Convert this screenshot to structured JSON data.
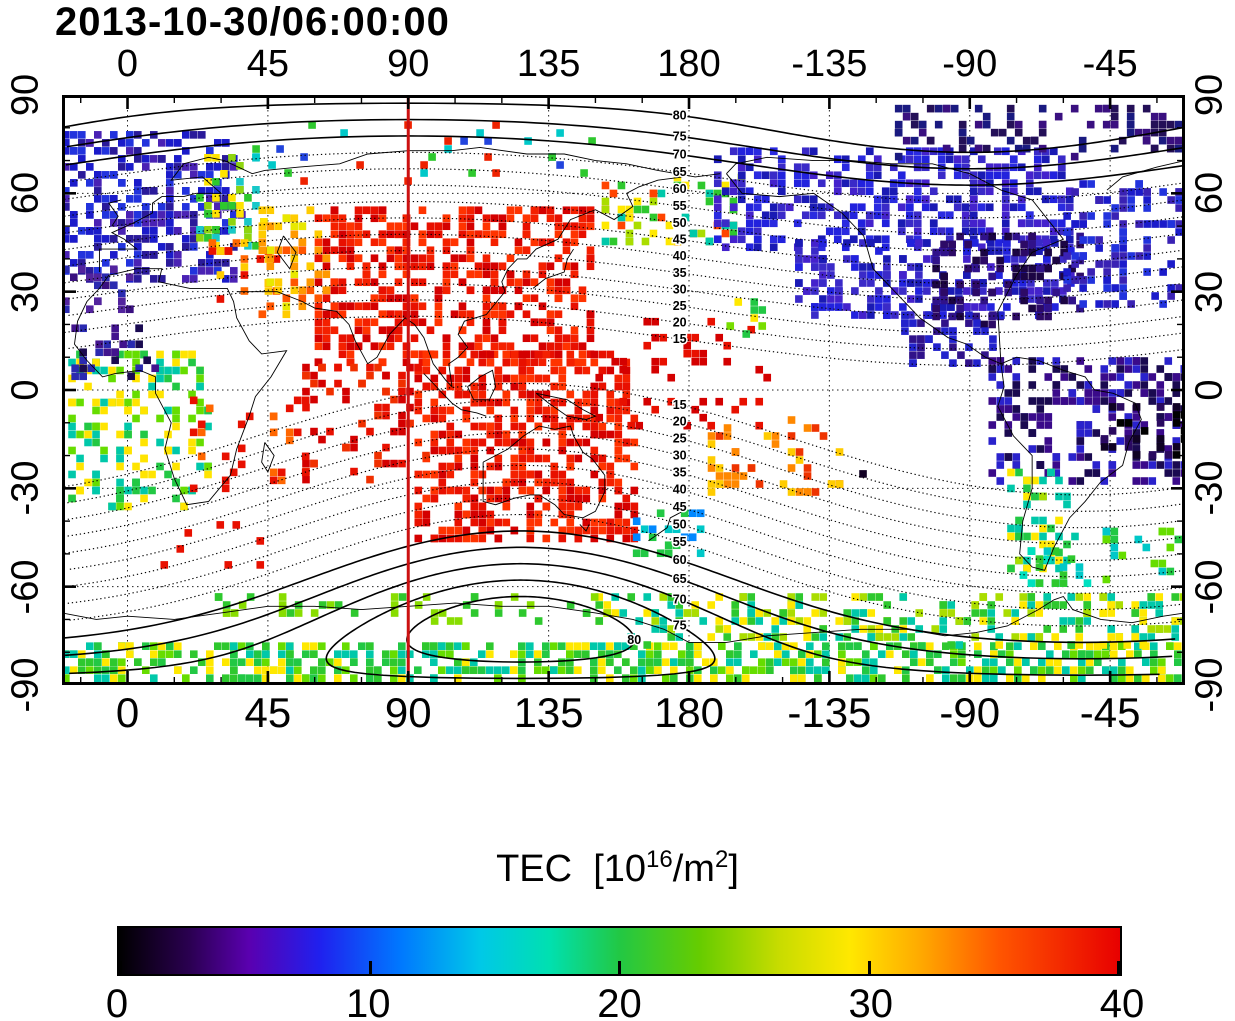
{
  "colorbar_title": {
    "prefix": "TEC  [10",
    "exp1": "16",
    "mid": "/m",
    "exp2": "2",
    "suffix": "]"
  },
  "chart_data": {
    "type": "heatmap",
    "title": "2013-10-30/06:00:00",
    "xlabel": "",
    "ylabel": "",
    "x_ticks": [
      "0",
      "45",
      "90",
      "135",
      "180",
      "-135",
      "-90",
      "-45"
    ],
    "x_tick_lons": [
      0,
      45,
      90,
      135,
      180,
      225,
      270,
      315
    ],
    "y_ticks": [
      "90",
      "60",
      "30",
      "0",
      "-30",
      "-60",
      "-90"
    ],
    "y_tick_lats": [
      90,
      60,
      30,
      0,
      -30,
      -60,
      -90
    ],
    "lon_min": -21,
    "lat_range": [
      -90,
      90
    ],
    "grid": {
      "lon_step": 45,
      "lat_step": 30,
      "style": "dotted"
    },
    "marker_line": {
      "lon": 90,
      "color": "#cc1111"
    },
    "contours": {
      "levels": [
        15,
        20,
        25,
        30,
        35,
        40,
        45,
        50,
        55,
        60,
        65,
        70,
        75,
        80
      ],
      "label_lon": 177,
      "solid_from": {
        "north": 70,
        "south": 60
      },
      "north_center": {
        "lat": 82.5,
        "lon": 270
      },
      "south_center": {
        "lat": -73,
        "lon": 126
      }
    },
    "colorbar": {
      "label": "TEC [10^16/m^2]",
      "range": [
        0,
        40
      ],
      "ticks": [
        "0",
        "10",
        "20",
        "30",
        "40"
      ],
      "tick_values": [
        0,
        10,
        20,
        30,
        40
      ],
      "gradient": [
        {
          "p": 0,
          "c": "#000000"
        },
        {
          "p": 7,
          "c": "#2a0050"
        },
        {
          "p": 13,
          "c": "#5a00b0"
        },
        {
          "p": 20,
          "c": "#2020ee"
        },
        {
          "p": 28,
          "c": "#0077ff"
        },
        {
          "p": 36,
          "c": "#00c8e8"
        },
        {
          "p": 43,
          "c": "#00e0b0"
        },
        {
          "p": 50,
          "c": "#22c844"
        },
        {
          "p": 58,
          "c": "#66cc00"
        },
        {
          "p": 66,
          "c": "#c8dc00"
        },
        {
          "p": 73,
          "c": "#ffe800"
        },
        {
          "p": 80,
          "c": "#ffaa00"
        },
        {
          "p": 88,
          "c": "#ff5500"
        },
        {
          "p": 100,
          "c": "#e80000"
        }
      ]
    },
    "regions": [
      {
        "name": "europe-blue",
        "lon": [
          -21,
          36
        ],
        "lat": [
          34,
          79
        ],
        "density": 0.7,
        "tec": 6,
        "colors": [
          "#2a1a9a",
          "#2233dd",
          "#1b1bca",
          "#4a22b4"
        ]
      },
      {
        "name": "iberia-maghreb-purple",
        "lon": [
          -21,
          2
        ],
        "lat": [
          24,
          38
        ],
        "density": 0.55,
        "tec": 5,
        "colors": [
          "#3a1080",
          "#52239e",
          "#2a2ab0"
        ]
      },
      {
        "name": "europe-green-fringe",
        "lon": [
          22,
          44
        ],
        "lat": [
          44,
          72
        ],
        "density": 0.5,
        "tec": 18,
        "colors": [
          "#2ec82e",
          "#8fd50f",
          "#ffe400",
          "#19c8c8"
        ]
      },
      {
        "name": "anatolia-red",
        "lon": [
          26,
          48
        ],
        "lat": [
          28,
          46
        ],
        "density": 0.4,
        "tec": 34,
        "colors": [
          "#e81000",
          "#ff6600",
          "#ffcc00"
        ]
      },
      {
        "name": "mideast-orange",
        "lon": [
          42,
          64
        ],
        "lat": [
          22,
          56
        ],
        "density": 0.55,
        "tec": 28,
        "colors": [
          "#ffcc00",
          "#ff9900",
          "#ff5500",
          "#e8e800"
        ]
      },
      {
        "name": "asia-red",
        "lon": [
          60,
          150
        ],
        "lat": [
          8,
          56
        ],
        "density": 0.75,
        "tec": 38,
        "colors": [
          "#e81000",
          "#f42000",
          "#d40000",
          "#ff3300"
        ]
      },
      {
        "name": "seasia-australia-red",
        "lon": [
          92,
          163
        ],
        "lat": [
          -46,
          12
        ],
        "density": 0.78,
        "tec": 38,
        "colors": [
          "#e81000",
          "#f42000",
          "#d40000",
          "#ff3300"
        ]
      },
      {
        "name": "indian-ocean-red",
        "lon": [
          56,
          96
        ],
        "lat": [
          -28,
          8
        ],
        "density": 0.3,
        "tec": 36,
        "colors": [
          "#e81000",
          "#f03000",
          "#d40000"
        ]
      },
      {
        "name": "west-pacific-red-scatter",
        "lon": [
          150,
          206
        ],
        "lat": [
          -12,
          22
        ],
        "density": 0.16,
        "tec": 36,
        "colors": [
          "#e81000",
          "#d40000"
        ]
      },
      {
        "name": "south-pacific-orange",
        "lon": [
          186,
          228
        ],
        "lat": [
          -32,
          -8
        ],
        "density": 0.3,
        "tec": 30,
        "colors": [
          "#ff8800",
          "#ee3300",
          "#ffcc00"
        ]
      },
      {
        "name": "hawaii-green",
        "lon": [
          192,
          206
        ],
        "lat": [
          16,
          28
        ],
        "density": 0.3,
        "tec": 24,
        "colors": [
          "#77dd00",
          "#ffe800",
          "#22c844"
        ]
      },
      {
        "name": "bering-green",
        "lon": [
          152,
          198
        ],
        "lat": [
          44,
          66
        ],
        "density": 0.38,
        "tec": 20,
        "colors": [
          "#2ec82e",
          "#aadd00",
          "#ffe800",
          "#ff4400",
          "#00c8aa"
        ]
      },
      {
        "name": "siberia-sparse",
        "lon": [
          40,
          150
        ],
        "lat": [
          64,
          82
        ],
        "density": 0.1,
        "tec": 15,
        "colors": [
          "#2ec82e",
          "#ee2200",
          "#00c8c8",
          "#2244dd"
        ]
      },
      {
        "name": "north-america-blue-north",
        "lon": [
          188,
          302
        ],
        "lat": [
          44,
          74
        ],
        "density": 0.78,
        "tec": 7,
        "colors": [
          "#2222dd",
          "#3a2ac8",
          "#1a1ab4",
          "#4422cc",
          "#2a2ae0"
        ]
      },
      {
        "name": "north-america-blue-south",
        "lon": [
          214,
          302
        ],
        "lat": [
          22,
          46
        ],
        "density": 0.75,
        "tec": 7,
        "colors": [
          "#2222dd",
          "#3a2ac8",
          "#1a1ab4",
          "#4422cc"
        ]
      },
      {
        "name": "na-east-dark",
        "lon": [
          258,
          306
        ],
        "lat": [
          20,
          48
        ],
        "density": 0.5,
        "tec": 4,
        "colors": [
          "#2d0a66",
          "#1c0544",
          "#30128a"
        ]
      },
      {
        "name": "central-america-purple",
        "lon": [
          248,
          282
        ],
        "lat": [
          8,
          24
        ],
        "density": 0.5,
        "tec": 5,
        "colors": [
          "#30128a",
          "#2222cc"
        ]
      },
      {
        "name": "arctic-canada-purple",
        "lon": [
          246,
          338
        ],
        "lat": [
          72,
          87
        ],
        "density": 0.5,
        "tec": 5,
        "colors": [
          "#3a1080",
          "#241058",
          "#1a1a80"
        ]
      },
      {
        "name": "north-atlantic-blue",
        "lon": [
          300,
          339
        ],
        "lat": [
          24,
          64
        ],
        "density": 0.45,
        "tec": 7,
        "colors": [
          "#2233dd",
          "#1b1bca",
          "#3a22b4"
        ]
      },
      {
        "name": "south-america-purple",
        "lon": [
          276,
          339
        ],
        "lat": [
          -28,
          10
        ],
        "density": 0.65,
        "tec": 5,
        "colors": [
          "#3a0a8a",
          "#2a22cc",
          "#1a0a50"
        ]
      },
      {
        "name": "brazil-black",
        "lon": [
          312,
          339
        ],
        "lat": [
          -22,
          -4
        ],
        "density": 0.45,
        "tec": 1,
        "colors": [
          "#100224",
          "#000000",
          "#2a0a60"
        ]
      },
      {
        "name": "chile-green-coast",
        "lon": [
          282,
          303
        ],
        "lat": [
          -56,
          -24
        ],
        "density": 0.55,
        "tec": 20,
        "colors": [
          "#22c844",
          "#00c8aa",
          "#aadd00",
          "#ffe800"
        ]
      },
      {
        "name": "patagonia-cyan",
        "lon": [
          286,
          308
        ],
        "lat": [
          -62,
          -48
        ],
        "density": 0.45,
        "tec": 13,
        "colors": [
          "#00c8c8",
          "#00e0c0",
          "#2ec82e"
        ]
      },
      {
        "name": "south-atlantic-cyan",
        "lon": [
          310,
          339
        ],
        "lat": [
          -58,
          -42
        ],
        "density": 0.3,
        "tec": 13,
        "colors": [
          "#00c8c8",
          "#22c844",
          "#66dd00"
        ]
      },
      {
        "name": "africa-green",
        "lon": [
          -19,
          26
        ],
        "lat": [
          -36,
          12
        ],
        "density": 0.5,
        "tec": 22,
        "colors": [
          "#22c844",
          "#66dd00",
          "#ffe400",
          "#00c8aa"
        ]
      },
      {
        "name": "sahel-purple-spot",
        "lon": [
          -18,
          8
        ],
        "lat": [
          4,
          20
        ],
        "density": 0.45,
        "tec": 5,
        "colors": [
          "#42148e",
          "#2a2ab0",
          "#1a0a50"
        ]
      },
      {
        "name": "east-africa-red-scatter",
        "lon": [
          20,
          58
        ],
        "lat": [
          -30,
          -2
        ],
        "density": 0.18,
        "tec": 36,
        "colors": [
          "#e81000",
          "#ff6600"
        ]
      },
      {
        "name": "southern-ocean-red-sparse",
        "lon": [
          8,
          46
        ],
        "lat": [
          -54,
          -40
        ],
        "density": 0.1,
        "tec": 36,
        "colors": [
          "#e81000"
        ]
      },
      {
        "name": "antarctica-band",
        "lon": [
          -21,
          339
        ],
        "lat": [
          -90,
          -77
        ],
        "density": 0.95,
        "tec": 22,
        "colors": [
          "#2ec82e",
          "#66dd00",
          "#ffe800",
          "#22c844",
          "#00c8aa"
        ]
      },
      {
        "name": "antarctic-coast-east",
        "lon": [
          150,
          339
        ],
        "lat": [
          -77,
          -62
        ],
        "density": 0.6,
        "tec": 22,
        "colors": [
          "#2ec82e",
          "#aadd00",
          "#00c8aa",
          "#ffe800"
        ]
      },
      {
        "name": "antarctic-coast-west",
        "lon": [
          28,
          150
        ],
        "lat": [
          -70,
          -62
        ],
        "density": 0.3,
        "tec": 20,
        "colors": [
          "#2ec82e",
          "#88dd00"
        ]
      },
      {
        "name": "new-zealand-cyan",
        "lon": [
          162,
          186
        ],
        "lat": [
          -50,
          -34
        ],
        "density": 0.4,
        "tec": 13,
        "colors": [
          "#00c8c8",
          "#22c844",
          "#0088ff"
        ]
      },
      {
        "name": "pacific-isolated-dark",
        "lon": [
          232,
          246
        ],
        "lat": [
          -32,
          -22
        ],
        "density": 0.08,
        "tec": 3,
        "colors": [
          "#110022",
          "#22c844"
        ]
      }
    ]
  }
}
